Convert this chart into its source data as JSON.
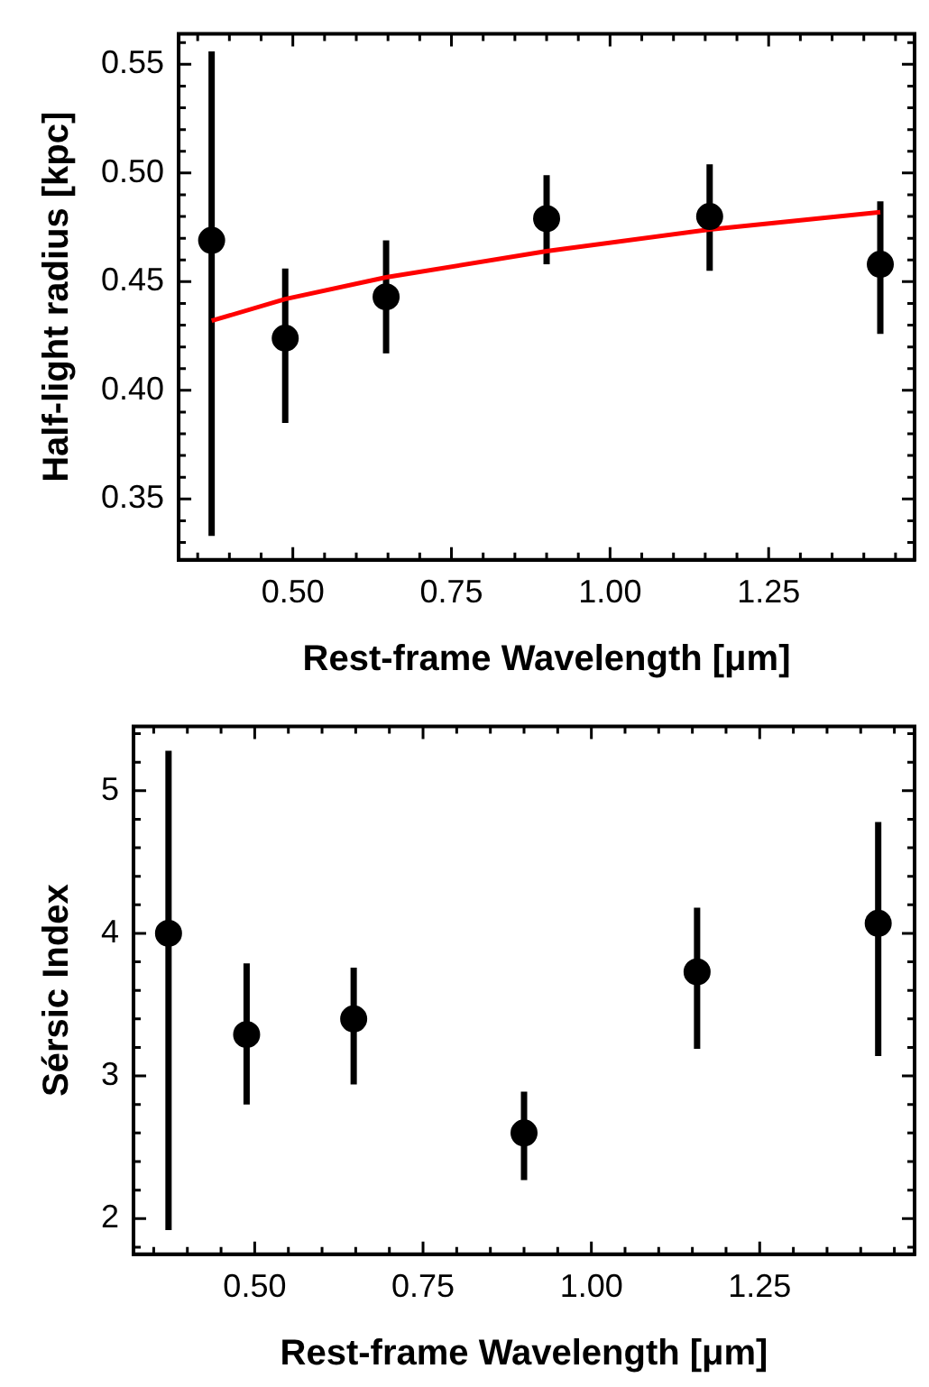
{
  "chart_data": [
    {
      "type": "scatter",
      "xlabel": "Rest-frame Wavelength [μm]",
      "ylabel": "Half-light radius [kpc]",
      "xlim": [
        0.32,
        1.48
      ],
      "ylim": [
        0.322,
        0.564
      ],
      "xticks": [
        {
          "value": 0.35,
          "label": null
        },
        {
          "value": 0.4,
          "label": null
        },
        {
          "value": 0.45,
          "label": null
        },
        {
          "value": 0.5,
          "label": "0.50"
        },
        {
          "value": 0.55,
          "label": null
        },
        {
          "value": 0.6,
          "label": null
        },
        {
          "value": 0.65,
          "label": null
        },
        {
          "value": 0.7,
          "label": null
        },
        {
          "value": 0.75,
          "label": "0.75"
        },
        {
          "value": 0.8,
          "label": null
        },
        {
          "value": 0.85,
          "label": null
        },
        {
          "value": 0.9,
          "label": null
        },
        {
          "value": 0.95,
          "label": null
        },
        {
          "value": 1.0,
          "label": "1.00"
        },
        {
          "value": 1.05,
          "label": null
        },
        {
          "value": 1.1,
          "label": null
        },
        {
          "value": 1.15,
          "label": null
        },
        {
          "value": 1.2,
          "label": null
        },
        {
          "value": 1.25,
          "label": "1.25"
        },
        {
          "value": 1.3,
          "label": null
        },
        {
          "value": 1.35,
          "label": null
        },
        {
          "value": 1.4,
          "label": null
        },
        {
          "value": 1.45,
          "label": null
        }
      ],
      "yticks": [
        {
          "value": 0.33,
          "label": null
        },
        {
          "value": 0.34,
          "label": null
        },
        0.35,
        {
          "value": 0.36,
          "label": null
        },
        {
          "value": 0.37,
          "label": null
        },
        {
          "value": 0.38,
          "label": null
        },
        {
          "value": 0.39,
          "label": null
        },
        {
          "value": 0.4,
          "label": "0.40"
        },
        {
          "value": 0.41,
          "label": null
        },
        {
          "value": 0.42,
          "label": null
        },
        {
          "value": 0.43,
          "label": null
        },
        {
          "value": 0.44,
          "label": null
        },
        0.45,
        {
          "value": 0.46,
          "label": null
        },
        {
          "value": 0.47,
          "label": null
        },
        {
          "value": 0.48,
          "label": null
        },
        {
          "value": 0.49,
          "label": null
        },
        {
          "value": 0.5,
          "label": "0.50"
        },
        {
          "value": 0.51,
          "label": null
        },
        {
          "value": 0.52,
          "label": null
        },
        {
          "value": 0.53,
          "label": null
        },
        {
          "value": 0.54,
          "label": null
        },
        0.55,
        {
          "value": 0.56,
          "label": null
        }
      ],
      "grid": false,
      "legend": false,
      "series": [
        {
          "marker": "circle",
          "color": "#000000",
          "x": [
            0.372,
            0.488,
            0.647,
            0.9,
            1.157,
            1.426
          ],
          "values": [
            0.469,
            0.424,
            0.443,
            0.479,
            0.48,
            0.458
          ],
          "errors": [
            [
              0.333,
              0.556
            ],
            [
              0.385,
              0.456
            ],
            [
              0.417,
              0.469
            ],
            [
              0.458,
              0.499
            ],
            [
              0.455,
              0.504
            ],
            [
              0.426,
              0.487
            ]
          ]
        },
        {
          "type": "line",
          "marker": "none",
          "color": "#ff0000",
          "x": [
            0.372,
            0.488,
            0.647,
            0.9,
            1.157,
            1.426
          ],
          "values": [
            0.432,
            0.442,
            0.452,
            0.464,
            0.474,
            0.482
          ]
        }
      ]
    },
    {
      "type": "scatter",
      "xlabel": "Rest-frame Wavelength [μm]",
      "ylabel": "Sérsic Index",
      "xlim": [
        0.32,
        1.48
      ],
      "ylim": [
        1.75,
        5.45
      ],
      "xticks": [
        {
          "value": 0.35,
          "label": null
        },
        {
          "value": 0.4,
          "label": null
        },
        {
          "value": 0.45,
          "label": null
        },
        {
          "value": 0.5,
          "label": "0.50"
        },
        {
          "value": 0.55,
          "label": null
        },
        {
          "value": 0.6,
          "label": null
        },
        {
          "value": 0.65,
          "label": null
        },
        {
          "value": 0.7,
          "label": null
        },
        {
          "value": 0.75,
          "label": "0.75"
        },
        {
          "value": 0.8,
          "label": null
        },
        {
          "value": 0.85,
          "label": null
        },
        {
          "value": 0.9,
          "label": null
        },
        {
          "value": 0.95,
          "label": null
        },
        {
          "value": 1.0,
          "label": "1.00"
        },
        {
          "value": 1.05,
          "label": null
        },
        {
          "value": 1.1,
          "label": null
        },
        {
          "value": 1.15,
          "label": null
        },
        {
          "value": 1.2,
          "label": null
        },
        {
          "value": 1.25,
          "label": "1.25"
        },
        {
          "value": 1.3,
          "label": null
        },
        {
          "value": 1.35,
          "label": null
        },
        {
          "value": 1.4,
          "label": null
        },
        {
          "value": 1.45,
          "label": null
        }
      ],
      "yticks": [
        {
          "value": 1.8,
          "label": null
        },
        2,
        {
          "value": 2.2,
          "label": null
        },
        {
          "value": 2.4,
          "label": null
        },
        {
          "value": 2.6,
          "label": null
        },
        {
          "value": 2.8,
          "label": null
        },
        3,
        {
          "value": 3.2,
          "label": null
        },
        {
          "value": 3.4,
          "label": null
        },
        {
          "value": 3.6,
          "label": null
        },
        {
          "value": 3.8,
          "label": null
        },
        4,
        {
          "value": 4.2,
          "label": null
        },
        {
          "value": 4.4,
          "label": null
        },
        {
          "value": 4.6,
          "label": null
        },
        {
          "value": 4.8,
          "label": null
        },
        5,
        {
          "value": 5.2,
          "label": null
        },
        {
          "value": 5.4,
          "label": null
        }
      ],
      "grid": false,
      "legend": false,
      "series": [
        {
          "marker": "circle",
          "color": "#000000",
          "x": [
            0.372,
            0.488,
            0.647,
            0.9,
            1.157,
            1.426
          ],
          "values": [
            4.0,
            3.29,
            3.4,
            2.6,
            3.73,
            4.07
          ],
          "errors": [
            [
              1.92,
              5.28
            ],
            [
              2.8,
              3.79
            ],
            [
              2.94,
              3.76
            ],
            [
              2.27,
              2.89
            ],
            [
              3.19,
              4.18
            ],
            [
              3.14,
              4.78
            ]
          ]
        }
      ]
    }
  ]
}
